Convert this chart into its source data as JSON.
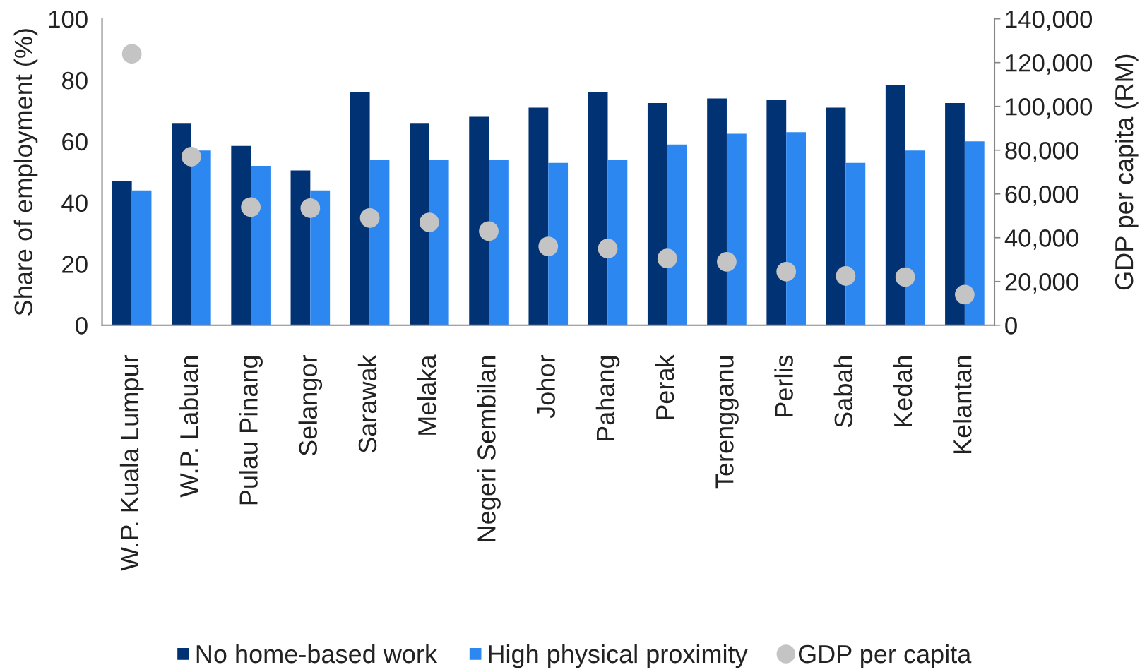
{
  "chart_data": {
    "type": "bar",
    "categories": [
      "W.P. Kuala Lumpur",
      "W.P. Labuan",
      "Pulau Pinang",
      "Selangor",
      "Sarawak",
      "Melaka",
      "Negeri Sembilan",
      "Johor",
      "Pahang",
      "Perak",
      "Terengganu",
      "Perlis",
      "Sabah",
      "Kedah",
      "Kelantan"
    ],
    "ylabel": "Share of employment (%)",
    "y2label": "GDP per capita (RM)",
    "ylim": [
      0,
      100
    ],
    "yticks": [
      0,
      20,
      40,
      60,
      80,
      100
    ],
    "y2lim": [
      0,
      140000
    ],
    "y2ticks": [
      0,
      {
        "value": 20000,
        "label": "20,000"
      },
      {
        "value": 40000,
        "label": "40,000"
      },
      {
        "value": 60000,
        "label": "60,000"
      },
      {
        "value": 80000,
        "label": "80,000"
      },
      {
        "value": 100000,
        "label": "100,000"
      },
      {
        "value": 120000,
        "label": "120,000"
      },
      {
        "value": 140000,
        "label": "140,000"
      }
    ],
    "series": [
      {
        "name": "No home-based work",
        "color": "#003274",
        "values": [
          47,
          66,
          58.5,
          50.5,
          76,
          66,
          68,
          71,
          76,
          72.5,
          74,
          73.5,
          71,
          78.5,
          72.5
        ]
      },
      {
        "name": "High physical proximity",
        "color": "#2c87f0",
        "values": [
          44,
          57,
          52,
          44,
          54,
          54,
          54,
          53,
          54,
          59,
          62.5,
          63,
          53,
          57,
          60
        ]
      },
      {
        "name": "GDP per capita",
        "type": "scatter",
        "axis": "y2",
        "marker": "circle",
        "color": "#c4c4c4",
        "values": [
          124000,
          77000,
          54000,
          53500,
          49000,
          47000,
          43000,
          36000,
          35000,
          30500,
          29000,
          24500,
          22500,
          22000,
          14000
        ]
      }
    ],
    "legend": "bottom"
  }
}
